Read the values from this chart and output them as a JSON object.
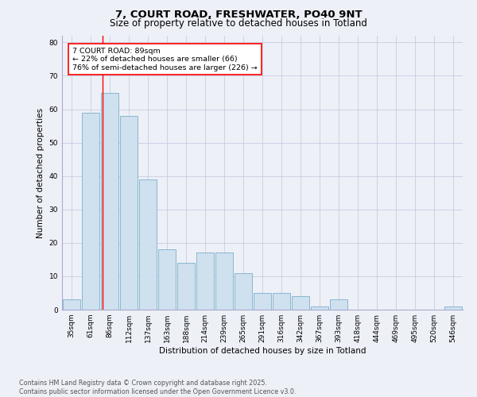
{
  "title1": "7, COURT ROAD, FRESHWATER, PO40 9NT",
  "title2": "Size of property relative to detached houses in Totland",
  "xlabel": "Distribution of detached houses by size in Totland",
  "ylabel": "Number of detached properties",
  "bin_labels": [
    "35sqm",
    "61sqm",
    "86sqm",
    "112sqm",
    "137sqm",
    "163sqm",
    "188sqm",
    "214sqm",
    "239sqm",
    "265sqm",
    "291sqm",
    "316sqm",
    "342sqm",
    "367sqm",
    "393sqm",
    "418sqm",
    "444sqm",
    "469sqm",
    "495sqm",
    "520sqm",
    "546sqm"
  ],
  "bar_values": [
    3,
    59,
    65,
    58,
    39,
    18,
    14,
    17,
    17,
    11,
    5,
    5,
    4,
    1,
    3,
    0,
    0,
    0,
    0,
    0,
    1
  ],
  "bar_color": "#cfe0ef",
  "bar_edge_color": "#7aafc8",
  "grid_color": "#c8cce0",
  "background_color": "#eef0f8",
  "annotation_text": "7 COURT ROAD: 89sqm\n← 22% of detached houses are smaller (66)\n76% of semi-detached houses are larger (226) →",
  "annotation_box_color": "white",
  "annotation_box_edge": "red",
  "red_line_x": 1.62,
  "ylim": [
    0,
    82
  ],
  "yticks": [
    0,
    10,
    20,
    30,
    40,
    50,
    60,
    70,
    80
  ],
  "footer_text": "Contains HM Land Registry data © Crown copyright and database right 2025.\nContains public sector information licensed under the Open Government Licence v3.0.",
  "title_fontsize": 9.5,
  "subtitle_fontsize": 8.5,
  "axis_label_fontsize": 7.5,
  "tick_fontsize": 6.5,
  "annotation_fontsize": 6.8,
  "footer_fontsize": 5.8
}
